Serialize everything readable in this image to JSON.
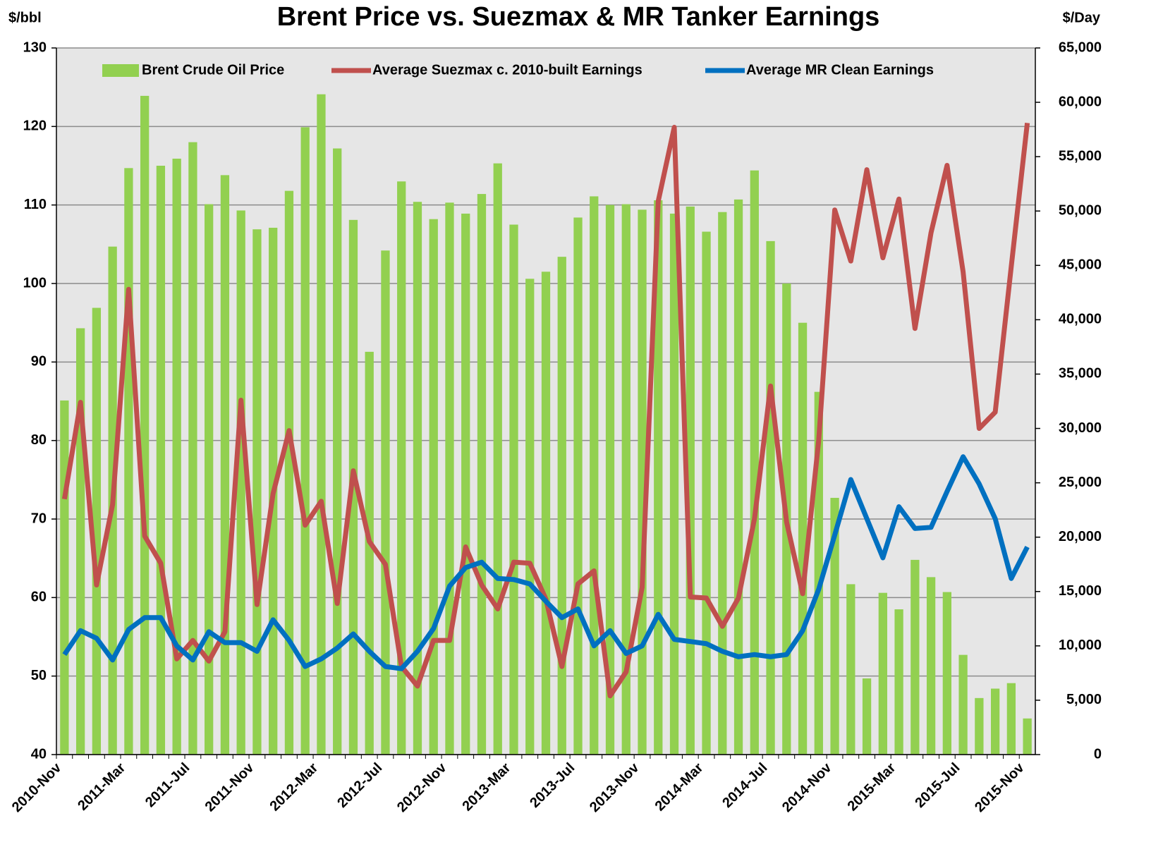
{
  "chart_data": {
    "type": "bar_line",
    "title": "Brent Price vs. Suezmax & MR Tanker Earnings",
    "y_label": "$/bbl",
    "y2_label": "$/Day",
    "categories": [
      "2010-Nov",
      null,
      null,
      null,
      "2011-Mar",
      null,
      null,
      null,
      "2011-Jul",
      null,
      null,
      null,
      "2011-Nov",
      null,
      null,
      null,
      "2012-Mar",
      null,
      null,
      null,
      "2012-Jul",
      null,
      null,
      null,
      "2012-Nov",
      null,
      null,
      null,
      "2013-Mar",
      null,
      null,
      null,
      "2013-Jul",
      null,
      null,
      null,
      "2013-Nov",
      null,
      null,
      null,
      "2014-Mar",
      null,
      null,
      null,
      "2014-Jul",
      null,
      null,
      null,
      "2014-Nov",
      null,
      null,
      null,
      "2015-Mar",
      null,
      null,
      null,
      "2015-Jul",
      null,
      null,
      null,
      "2015-Nov"
    ],
    "series": [
      {
        "name": "Brent Crude Oil Price",
        "type": "bar",
        "axis": "y",
        "color": "#92d050",
        "values": [
          85.1,
          94.3,
          96.9,
          104.7,
          114.7,
          123.9,
          115,
          115.9,
          118,
          110.1,
          113.8,
          109.3,
          106.9,
          107.1,
          111.8,
          119.9,
          124.1,
          117.2,
          108.1,
          91.3,
          104.2,
          113,
          110.4,
          108.2,
          110.3,
          108.9,
          111.4,
          115.3,
          107.5,
          100.6,
          101.5,
          103.4,
          108.4,
          111.1,
          110,
          110.1,
          109.4,
          110.6,
          108.9,
          109.8,
          106.6,
          109.1,
          110.7,
          114.4,
          105.4,
          100,
          95,
          86.2,
          72.7,
          61.7,
          49.7,
          60.6,
          58.5,
          64.8,
          62.6,
          60.7,
          52.7,
          47.2,
          48.4,
          49.1,
          44.6
        ]
      },
      {
        "name": "Average Suezmax c. 2010-built Earnings",
        "type": "line",
        "axis": "y2",
        "color": "#c0504d",
        "values": [
          23500,
          32400,
          15600,
          23000,
          42800,
          20100,
          17600,
          8800,
          10500,
          8600,
          11300,
          32600,
          13800,
          24000,
          29800,
          21100,
          23300,
          13900,
          26100,
          19600,
          17500,
          8100,
          6300,
          10500,
          10500,
          19100,
          15600,
          13400,
          17700,
          17600,
          14300,
          8100,
          15700,
          16900,
          5400,
          7600,
          15400,
          50900,
          57700,
          14500,
          14400,
          11800,
          14400,
          21700,
          33900,
          21400,
          14800,
          28900,
          50100,
          45400,
          53800,
          45700,
          51100,
          39200,
          48000,
          54200,
          44400,
          30000,
          31500,
          44900,
          58100
        ]
      },
      {
        "name": "Average MR Clean Earnings",
        "type": "line",
        "axis": "y2",
        "color": "#0070c0",
        "values": [
          9200,
          11400,
          10700,
          8700,
          11500,
          12600,
          12600,
          10000,
          8700,
          11300,
          10300,
          10300,
          9500,
          12400,
          10500,
          8100,
          8800,
          9800,
          11100,
          9500,
          8100,
          7900,
          9500,
          11600,
          15500,
          17200,
          17700,
          16200,
          16100,
          15700,
          14100,
          12600,
          13400,
          10000,
          11400,
          9300,
          10000,
          12900,
          10600,
          10400,
          10200,
          9500,
          9000,
          9200,
          9000,
          9200,
          11400,
          15200,
          20200,
          25300,
          21700,
          18100,
          22800,
          20800,
          20900,
          24200,
          27400,
          24900,
          21700,
          16200,
          19100
        ]
      }
    ],
    "ylim": [
      40,
      130
    ],
    "yticks": [
      40,
      50,
      60,
      70,
      80,
      90,
      100,
      110,
      120,
      130
    ],
    "y2lim": [
      0,
      65000
    ],
    "y2ticks": [
      0,
      {
        "value": 5000,
        "label": "5,000"
      },
      {
        "value": 10000,
        "label": "10,000"
      },
      {
        "value": 15000,
        "label": "15,000"
      },
      {
        "value": 20000,
        "label": "20,000"
      },
      {
        "value": 25000,
        "label": "25,000"
      },
      {
        "value": 30000,
        "label": "30,000"
      },
      {
        "value": 35000,
        "label": "35,000"
      },
      {
        "value": 40000,
        "label": "40,000"
      },
      {
        "value": 45000,
        "label": "45,000"
      },
      {
        "value": 50000,
        "label": "50,000"
      },
      {
        "value": 55000,
        "label": "55,000"
      },
      {
        "value": 60000,
        "label": "60,000"
      },
      {
        "value": 65000,
        "label": "65,000"
      }
    ],
    "grid": true,
    "legend": "top"
  }
}
